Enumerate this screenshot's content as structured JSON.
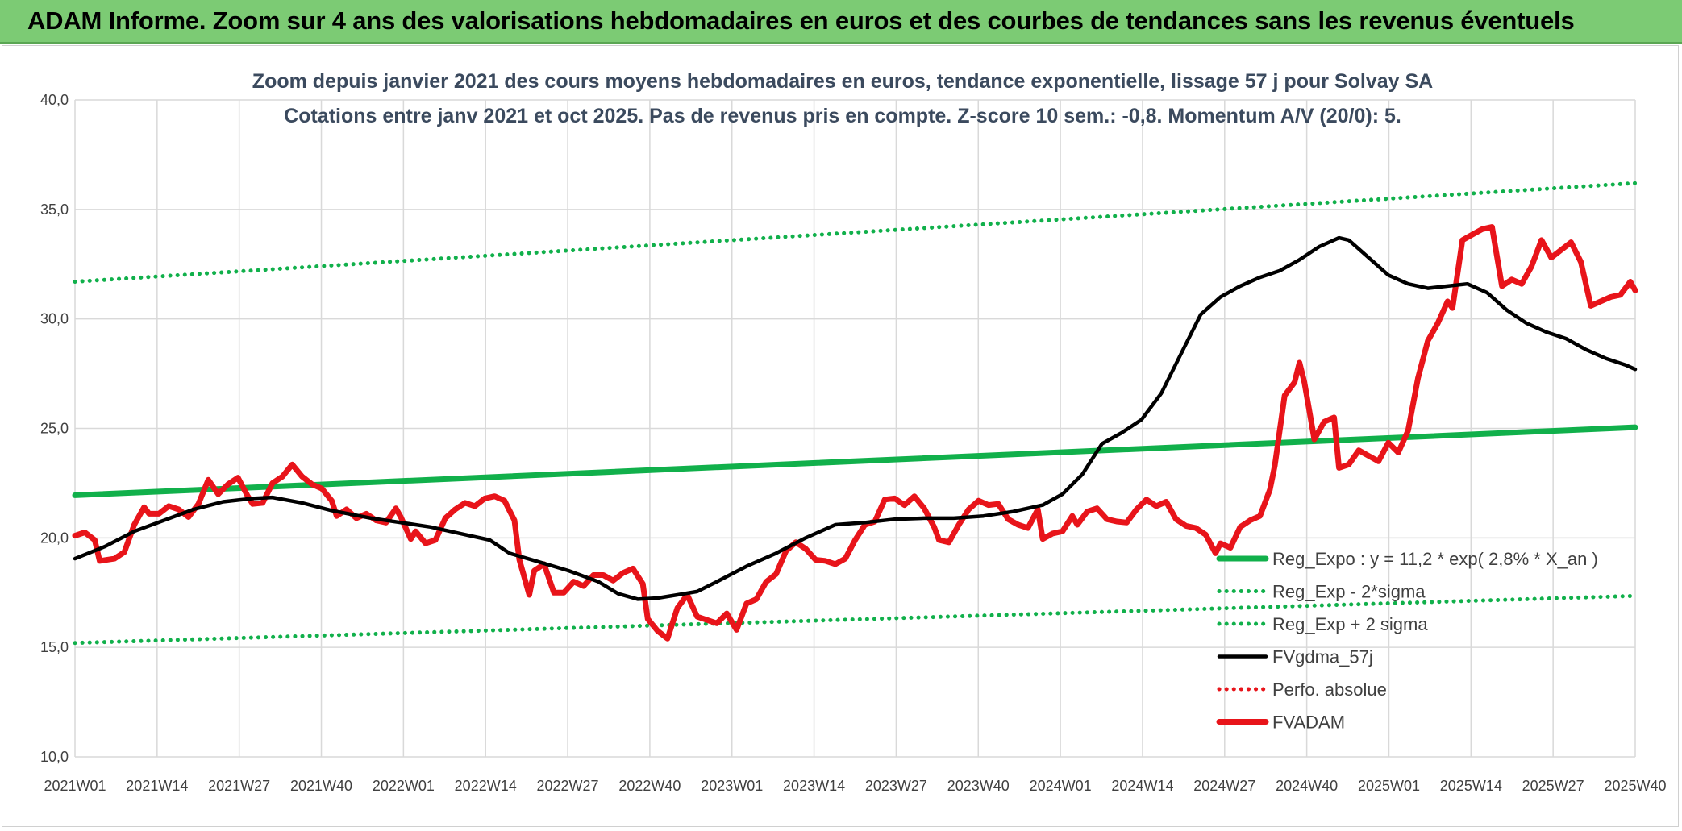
{
  "banner": {
    "title": "ADAM Informe. Zoom sur 4 ans des valorisations hebdomadaires en euros et des courbes de tendances sans les revenus éventuels"
  },
  "chart_data": {
    "type": "line",
    "title": "Zoom depuis janvier 2021 des cours moyens hebdomadaires en euros, tendance exponentielle, lissage 57 j pour Solvay SA",
    "subtitle": "Cotations entre janv 2021 et oct 2025. Pas de revenus pris en compte. Z-score 10 sem.: -0,8. Momentum A/V (20/0): 5.",
    "xlabel": "",
    "ylabel": "",
    "ylim": [
      10,
      40
    ],
    "yticks": [
      "10,0",
      "15,0",
      "20,0",
      "25,0",
      "30,0",
      "35,0",
      "40,0"
    ],
    "ytick_values": [
      10,
      15,
      20,
      25,
      30,
      35,
      40
    ],
    "xticks": [
      "2021W01",
      "2021W14",
      "2021W27",
      "2021W40",
      "2022W01",
      "2022W14",
      "2022W27",
      "2022W40",
      "2023W01",
      "2023W14",
      "2023W27",
      "2023W40",
      "2024W01",
      "2024W14",
      "2024W27",
      "2024W40",
      "2025W01",
      "2025W14",
      "2025W27",
      "2025W40"
    ],
    "grid": true,
    "legend_position": "bottom-right",
    "series": [
      {
        "name": "Reg_Expo : y = 11,2 * exp( 2,8% *  X_an )",
        "color": "#11b04b",
        "style": "solid-thick",
        "points": [
          [
            0,
            21.95
          ],
          [
            247,
            25.05
          ]
        ]
      },
      {
        "name": "Reg_Exp - 2*sigma",
        "color": "#11b04b",
        "style": "dotted",
        "points": [
          [
            0,
            15.2
          ],
          [
            247,
            17.35
          ]
        ]
      },
      {
        "name": "Reg_Exp + 2 sigma",
        "color": "#11b04b",
        "style": "dotted",
        "points": [
          [
            0,
            31.7
          ],
          [
            247,
            36.2
          ]
        ]
      },
      {
        "name": "FVgdma_57j",
        "color": "#000000",
        "style": "solid",
        "points": [
          [
            0,
            19.05
          ],
          [
            6,
            19.6
          ],
          [
            12,
            20.3
          ],
          [
            18,
            20.8
          ],
          [
            24,
            21.3
          ],
          [
            30,
            21.65
          ],
          [
            36,
            21.8
          ],
          [
            40,
            21.85
          ],
          [
            46,
            21.6
          ],
          [
            52,
            21.25
          ],
          [
            60,
            20.9
          ],
          [
            66,
            20.7
          ],
          [
            72,
            20.5
          ],
          [
            78,
            20.2
          ],
          [
            84,
            19.9
          ],
          [
            88,
            19.3
          ],
          [
            94,
            18.9
          ],
          [
            100,
            18.5
          ],
          [
            106,
            18.0
          ],
          [
            110,
            17.45
          ],
          [
            114,
            17.2
          ],
          [
            118,
            17.25
          ],
          [
            122,
            17.4
          ],
          [
            126,
            17.55
          ],
          [
            130,
            18.0
          ],
          [
            136,
            18.7
          ],
          [
            142,
            19.3
          ],
          [
            148,
            20.0
          ],
          [
            154,
            20.6
          ],
          [
            160,
            20.7
          ],
          [
            166,
            20.85
          ],
          [
            172,
            20.9
          ],
          [
            178,
            20.9
          ],
          [
            184,
            21.0
          ],
          [
            190,
            21.2
          ],
          [
            196,
            21.5
          ],
          [
            200,
            22.0
          ],
          [
            204,
            22.9
          ],
          [
            208,
            24.3
          ],
          [
            212,
            24.8
          ],
          [
            216,
            25.4
          ],
          [
            220,
            26.6
          ],
          [
            224,
            28.4
          ],
          [
            228,
            30.2
          ],
          [
            232,
            31.0
          ],
          [
            236,
            31.5
          ],
          [
            240,
            31.9
          ],
          [
            244,
            32.2
          ],
          [
            248,
            32.7
          ],
          [
            252,
            33.3
          ],
          [
            256,
            33.7
          ],
          [
            258,
            33.6
          ],
          [
            262,
            32.8
          ],
          [
            266,
            32.0
          ],
          [
            270,
            31.6
          ],
          [
            274,
            31.4
          ],
          [
            278,
            31.5
          ],
          [
            282,
            31.6
          ],
          [
            286,
            31.2
          ],
          [
            290,
            30.4
          ],
          [
            294,
            29.8
          ],
          [
            298,
            29.4
          ],
          [
            302,
            29.1
          ],
          [
            306,
            28.6
          ],
          [
            310,
            28.2
          ],
          [
            314,
            27.9
          ],
          [
            316,
            27.7
          ]
        ]
      },
      {
        "name": "Perfo. absolue",
        "color": "#e8141a",
        "style": "dotted",
        "points": []
      },
      {
        "name": "FVADAM",
        "color": "#e8141a",
        "style": "solid-thick",
        "points": [
          [
            0,
            20.1
          ],
          [
            2,
            20.25
          ],
          [
            4,
            19.9
          ],
          [
            5,
            18.95
          ],
          [
            8,
            19.05
          ],
          [
            10,
            19.35
          ],
          [
            12,
            20.6
          ],
          [
            14,
            21.4
          ],
          [
            15,
            21.1
          ],
          [
            17,
            21.1
          ],
          [
            19,
            21.45
          ],
          [
            21,
            21.3
          ],
          [
            23,
            20.95
          ],
          [
            25,
            21.55
          ],
          [
            27,
            22.65
          ],
          [
            29,
            22.0
          ],
          [
            31,
            22.45
          ],
          [
            33,
            22.75
          ],
          [
            35,
            21.9
          ],
          [
            36,
            21.55
          ],
          [
            38,
            21.6
          ],
          [
            40,
            22.5
          ],
          [
            42,
            22.8
          ],
          [
            44,
            23.35
          ],
          [
            46,
            22.8
          ],
          [
            48,
            22.45
          ],
          [
            50,
            22.25
          ],
          [
            52,
            21.7
          ],
          [
            53,
            21.0
          ],
          [
            55,
            21.3
          ],
          [
            57,
            20.9
          ],
          [
            59,
            21.1
          ],
          [
            61,
            20.8
          ],
          [
            63,
            20.7
          ],
          [
            65,
            21.35
          ],
          [
            66,
            20.95
          ],
          [
            68,
            19.95
          ],
          [
            69,
            20.3
          ],
          [
            71,
            19.75
          ],
          [
            73,
            19.9
          ],
          [
            75,
            20.9
          ],
          [
            77,
            21.3
          ],
          [
            79,
            21.6
          ],
          [
            81,
            21.45
          ],
          [
            83,
            21.8
          ],
          [
            85,
            21.9
          ],
          [
            87,
            21.7
          ],
          [
            89,
            20.8
          ],
          [
            90,
            19.0
          ],
          [
            92,
            17.4
          ],
          [
            93,
            18.5
          ],
          [
            95,
            18.8
          ],
          [
            97,
            17.5
          ],
          [
            99,
            17.5
          ],
          [
            101,
            18.0
          ],
          [
            103,
            17.8
          ],
          [
            105,
            18.3
          ],
          [
            107,
            18.3
          ],
          [
            109,
            18.05
          ],
          [
            111,
            18.4
          ],
          [
            113,
            18.6
          ],
          [
            115,
            17.9
          ],
          [
            116,
            16.3
          ],
          [
            118,
            15.75
          ],
          [
            120,
            15.4
          ],
          [
            122,
            16.8
          ],
          [
            124,
            17.4
          ],
          [
            126,
            16.4
          ],
          [
            128,
            16.25
          ],
          [
            130,
            16.1
          ],
          [
            132,
            16.55
          ],
          [
            134,
            15.8
          ],
          [
            136,
            17.0
          ],
          [
            138,
            17.2
          ],
          [
            140,
            18.0
          ],
          [
            142,
            18.35
          ],
          [
            144,
            19.4
          ],
          [
            146,
            19.8
          ],
          [
            148,
            19.5
          ],
          [
            150,
            19.0
          ],
          [
            152,
            18.95
          ],
          [
            154,
            18.8
          ],
          [
            156,
            19.05
          ],
          [
            158,
            19.9
          ],
          [
            160,
            20.6
          ],
          [
            162,
            20.75
          ],
          [
            164,
            21.75
          ],
          [
            166,
            21.8
          ],
          [
            168,
            21.5
          ],
          [
            170,
            21.9
          ],
          [
            172,
            21.35
          ],
          [
            174,
            20.5
          ],
          [
            175,
            19.9
          ],
          [
            177,
            19.8
          ],
          [
            179,
            20.6
          ],
          [
            181,
            21.3
          ],
          [
            183,
            21.7
          ],
          [
            185,
            21.5
          ],
          [
            187,
            21.55
          ],
          [
            189,
            20.85
          ],
          [
            191,
            20.6
          ],
          [
            193,
            20.45
          ],
          [
            195,
            21.3
          ],
          [
            196,
            19.95
          ],
          [
            198,
            20.2
          ],
          [
            200,
            20.3
          ],
          [
            202,
            21.0
          ],
          [
            203,
            20.6
          ],
          [
            205,
            21.2
          ],
          [
            207,
            21.35
          ],
          [
            209,
            20.85
          ],
          [
            211,
            20.75
          ],
          [
            213,
            20.7
          ],
          [
            215,
            21.3
          ],
          [
            217,
            21.75
          ],
          [
            219,
            21.45
          ],
          [
            221,
            21.65
          ],
          [
            223,
            20.85
          ],
          [
            225,
            20.55
          ],
          [
            227,
            20.45
          ],
          [
            229,
            20.15
          ],
          [
            231,
            19.3
          ],
          [
            232,
            19.75
          ],
          [
            234,
            19.55
          ],
          [
            236,
            20.5
          ],
          [
            238,
            20.8
          ],
          [
            240,
            21.0
          ],
          [
            242,
            22.2
          ],
          [
            243,
            23.3
          ],
          [
            245,
            26.5
          ],
          [
            247,
            27.1
          ],
          [
            248,
            28.0
          ],
          [
            249,
            27.1
          ],
          [
            251,
            24.5
          ],
          [
            253,
            25.3
          ],
          [
            255,
            25.5
          ],
          [
            256,
            23.2
          ],
          [
            258,
            23.35
          ],
          [
            260,
            24.0
          ],
          [
            262,
            23.75
          ],
          [
            264,
            23.5
          ],
          [
            266,
            24.35
          ],
          [
            268,
            23.9
          ],
          [
            270,
            24.9
          ],
          [
            272,
            27.3
          ],
          [
            274,
            29.0
          ],
          [
            276,
            29.8
          ],
          [
            278,
            30.8
          ],
          [
            279,
            30.5
          ],
          [
            281,
            33.6
          ],
          [
            283,
            33.85
          ],
          [
            285,
            34.1
          ],
          [
            287,
            34.2
          ],
          [
            289,
            31.5
          ],
          [
            291,
            31.8
          ],
          [
            293,
            31.6
          ],
          [
            295,
            32.4
          ],
          [
            297,
            33.6
          ],
          [
            299,
            32.8
          ],
          [
            301,
            33.15
          ],
          [
            303,
            33.5
          ],
          [
            305,
            32.6
          ],
          [
            307,
            30.6
          ],
          [
            309,
            30.8
          ],
          [
            311,
            31.0
          ],
          [
            313,
            31.1
          ],
          [
            315,
            31.7
          ],
          [
            316,
            31.3
          ]
        ]
      }
    ]
  },
  "legend": {
    "items": [
      "Reg_Expo : y = 11,2 * exp( 2,8% *  X_an )",
      "Reg_Exp - 2*sigma",
      "Reg_Exp + 2 sigma",
      "FVgdma_57j",
      "Perfo. absolue",
      "FVADAM"
    ]
  }
}
